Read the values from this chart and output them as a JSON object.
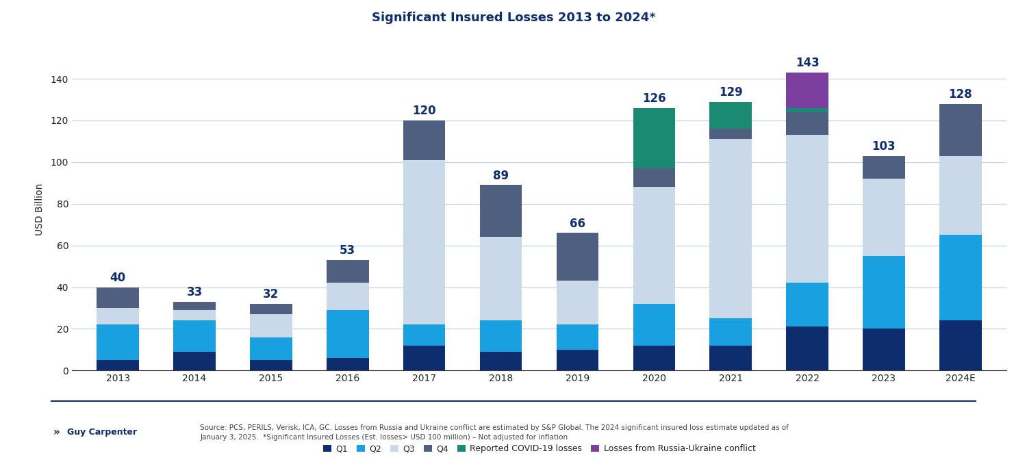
{
  "title": "Significant Insured Losses 2013 to 2024*",
  "years": [
    "2013",
    "2014",
    "2015",
    "2016",
    "2017",
    "2018",
    "2019",
    "2020",
    "2021",
    "2022",
    "2023",
    "2024E"
  ],
  "totals": [
    40,
    33,
    32,
    53,
    120,
    89,
    66,
    126,
    129,
    143,
    103,
    128
  ],
  "Q1": [
    5,
    9,
    5,
    6,
    12,
    9,
    10,
    12,
    12,
    21,
    20,
    24
  ],
  "Q2": [
    17,
    15,
    11,
    23,
    10,
    15,
    12,
    20,
    13,
    21,
    35,
    41
  ],
  "Q3": [
    8,
    5,
    11,
    13,
    79,
    40,
    21,
    56,
    86,
    71,
    37,
    38
  ],
  "Q4": [
    10,
    4,
    5,
    11,
    19,
    25,
    23,
    9,
    5,
    11,
    11,
    25
  ],
  "covid": [
    0,
    0,
    0,
    0,
    0,
    0,
    0,
    29,
    13,
    2,
    0,
    0
  ],
  "ukraine": [
    0,
    0,
    0,
    0,
    0,
    0,
    0,
    0,
    0,
    17,
    0,
    0
  ],
  "colors": {
    "Q1": "#0d2d6e",
    "Q2": "#19a0e0",
    "Q3": "#cad9ea",
    "Q4": "#4e5f80",
    "covid": "#1a8a72",
    "ukraine": "#7b3fa0"
  },
  "ylabel": "USD Billion",
  "ylim": [
    0,
    155
  ],
  "yticks": [
    0,
    20,
    40,
    60,
    80,
    100,
    120,
    140
  ],
  "legend_labels": [
    "Q1",
    "Q2",
    "Q3",
    "Q4",
    "Reported COVID-19 losses",
    "Losses from Russia-Ukraine conflict"
  ],
  "legend_color_keys": [
    "Q1",
    "Q2",
    "Q3",
    "Q4",
    "covid",
    "ukraine"
  ],
  "source_text": "Source: PCS, PERILS, Verisk, ICA, GC. Losses from Russia and Ukraine conflict are estimated by S&P Global. The 2024 significant insured loss estimate updated as of\nJanuary 3, 2025.  *Significant Insured Losses (Est. losses> USD 100 million) – Not adjusted for inflation",
  "background_color": "#ffffff",
  "bar_width": 0.55,
  "title_color": "#0d2d6e",
  "total_label_color": "#0d2d6e",
  "total_label_fontsize": 12,
  "axis_label_fontsize": 10,
  "tick_label_fontsize": 10,
  "grid_color": "#c5d5e8",
  "footer_line_color": "#0d2d6e"
}
